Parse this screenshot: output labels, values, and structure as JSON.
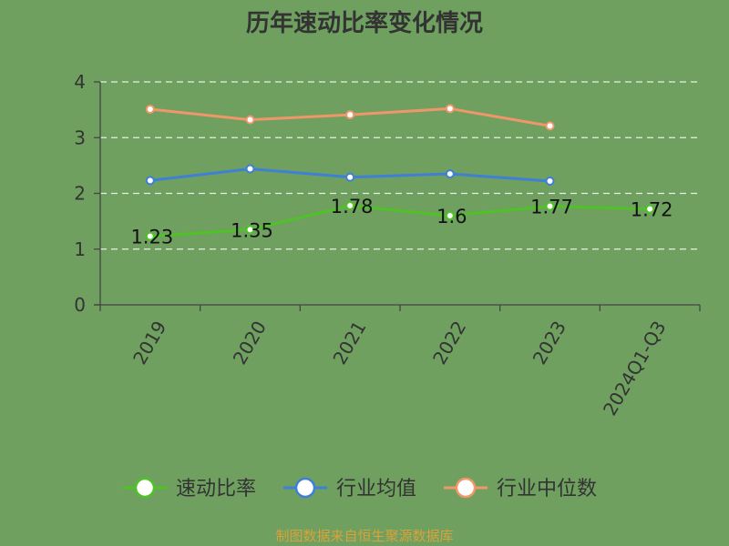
{
  "chart_data": {
    "type": "line",
    "title": "历年速动比率变化情况",
    "categories": [
      "2019",
      "2020",
      "2021",
      "2022",
      "2023",
      "2024Q1-Q3"
    ],
    "ylim": [
      0,
      4
    ],
    "yticks": [
      0,
      1,
      2,
      3,
      4
    ],
    "grid": true,
    "legend_position": "bottom",
    "series": [
      {
        "name": "速动比率",
        "color": "#4fc227",
        "values": [
          1.23,
          1.35,
          1.78,
          1.6,
          1.77,
          1.72
        ],
        "labels": [
          "1.23",
          "1.35",
          "1.78",
          "1.6",
          "1.77",
          "1.72"
        ]
      },
      {
        "name": "行业均值",
        "color": "#3f7fd6",
        "values": [
          2.23,
          2.44,
          2.29,
          2.35,
          2.22,
          null
        ]
      },
      {
        "name": "行业中位数",
        "color": "#f0976a",
        "values": [
          3.51,
          3.32,
          3.41,
          3.52,
          3.21,
          null
        ]
      }
    ],
    "source": "制图数据来自恒生聚源数据库"
  }
}
